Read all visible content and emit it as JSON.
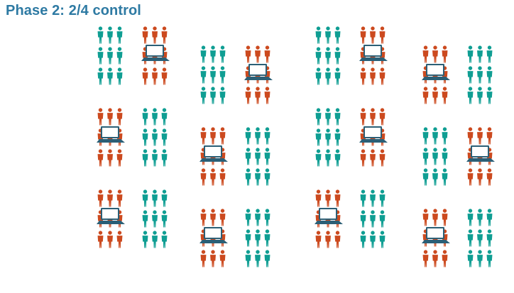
{
  "title": "Phase 2: 2/4 control",
  "colors": {
    "control": "#0f9e93",
    "intervention": "#cc4a1f",
    "laptop_body": "#2b5f76",
    "laptop_screen": "#ffffff",
    "title": "#2e7aa3"
  },
  "icons": {
    "person": "person-icon",
    "laptop": "laptop-icon"
  },
  "legend_groups": {
    "control": "teal person icons, no laptop",
    "intervention": "orange person icons with laptop"
  },
  "columns": [
    {
      "clusters": [
        {
          "pair": [
            "control",
            "intervention"
          ]
        },
        {
          "pair": [
            "intervention",
            "control"
          ]
        },
        {
          "pair": [
            "intervention",
            "control"
          ]
        }
      ]
    },
    {
      "clusters": [
        {
          "pair": [
            "control",
            "intervention"
          ]
        },
        {
          "pair": [
            "intervention",
            "control"
          ]
        },
        {
          "pair": [
            "intervention",
            "control"
          ]
        }
      ]
    },
    {
      "clusters": [
        {
          "pair": [
            "control",
            "intervention"
          ]
        },
        {
          "pair": [
            "control",
            "intervention"
          ]
        },
        {
          "pair": [
            "intervention",
            "control"
          ]
        }
      ]
    },
    {
      "clusters": [
        {
          "pair": [
            "intervention",
            "control"
          ]
        },
        {
          "pair": [
            "control",
            "intervention"
          ]
        },
        {
          "pair": [
            "intervention",
            "control"
          ]
        }
      ]
    }
  ]
}
